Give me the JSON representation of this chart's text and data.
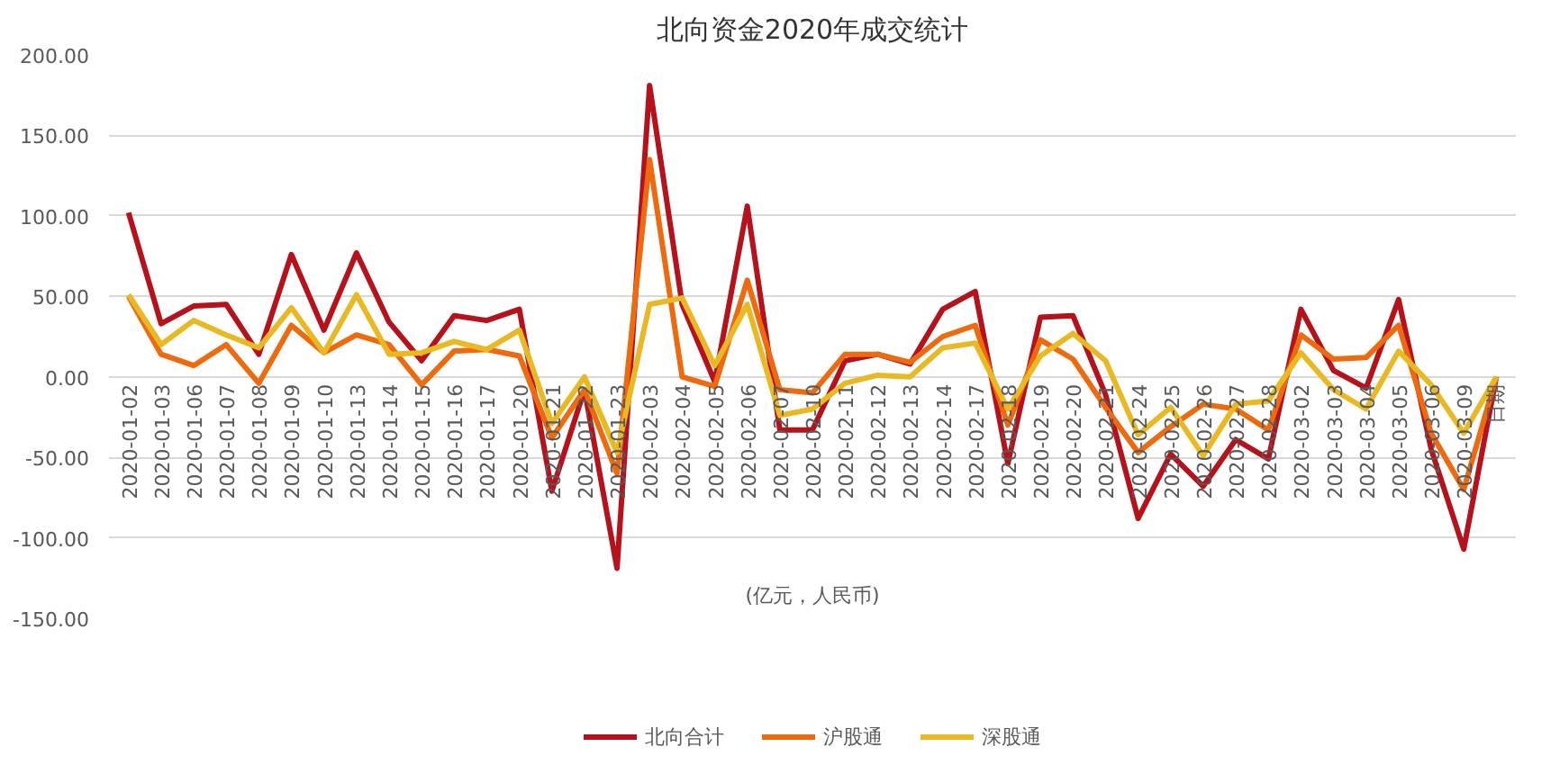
{
  "chart_data": {
    "type": "line",
    "title": "北向资金2020年成交统计",
    "categories": [
      "2020-01-02",
      "2020-01-03",
      "2020-01-06",
      "2020-01-07",
      "2020-01-08",
      "2020-01-09",
      "2020-01-10",
      "2020-01-13",
      "2020-01-14",
      "2020-01-15",
      "2020-01-16",
      "2020-01-17",
      "2020-01-20",
      "2020-01-21",
      "2020-01-22",
      "2020-01-23",
      "2020-02-03",
      "2020-02-04",
      "2020-02-05",
      "2020-02-06",
      "2020-02-07",
      "2020-02-10",
      "2020-02-11",
      "2020-02-12",
      "2020-02-13",
      "2020-02-14",
      "2020-02-17",
      "2020-02-18",
      "2020-02-19",
      "2020-02-20",
      "2020-02-21",
      "2020-02-24",
      "2020-02-25",
      "2020-02-26",
      "2020-02-27",
      "2020-02-28",
      "2020-03-02",
      "2020-03-03",
      "2020-03-04",
      "2020-03-05",
      "2020-03-06",
      "2020-03-09",
      "日期"
    ],
    "series": [
      {
        "name": "北向合计",
        "color": "#b5121b",
        "values": [
          102,
          33,
          44,
          45,
          14,
          76,
          29,
          77,
          34,
          10,
          38,
          35,
          42,
          -71,
          -8,
          -119,
          181,
          45,
          -3,
          106,
          -33,
          -33,
          10,
          14,
          8,
          42,
          53,
          -54,
          37,
          38,
          -11,
          -88,
          -48,
          -68,
          -39,
          -51,
          42,
          4,
          -7,
          48,
          -45,
          -107,
          0
        ]
      },
      {
        "name": "沪股通",
        "color": "#ed6a0f",
        "values": [
          50,
          14,
          7,
          20,
          -4,
          32,
          15,
          26,
          20,
          -5,
          16,
          17,
          13,
          -38,
          -8,
          -60,
          135,
          0,
          -6,
          60,
          -8,
          -10,
          14,
          14,
          9,
          25,
          32,
          -30,
          23,
          11,
          -19,
          -47,
          -31,
          -17,
          -20,
          -33,
          26,
          11,
          12,
          32,
          -35,
          -70,
          0
        ]
      },
      {
        "name": "深股通",
        "color": "#e8b923",
        "values": [
          51,
          20,
          35,
          26,
          18,
          43,
          15,
          51,
          14,
          15,
          22,
          17,
          29,
          -29,
          0,
          -47,
          45,
          49,
          7,
          45,
          -24,
          -20,
          -4,
          1,
          0,
          18,
          21,
          -20,
          13,
          27,
          10,
          -36,
          -19,
          -49,
          -17,
          -15,
          15,
          -8,
          -20,
          16,
          -5,
          -35,
          0
        ]
      }
    ],
    "ylim": [
      -150,
      200
    ],
    "yticks": [
      {
        "value": -150,
        "label": "-150.00"
      },
      {
        "value": -100,
        "label": "-100.00"
      },
      {
        "value": -50,
        "label": "-50.00"
      },
      {
        "value": 0,
        "label": "0.00"
      },
      {
        "value": 50,
        "label": "50.00"
      },
      {
        "value": 100,
        "label": "100.00"
      },
      {
        "value": 150,
        "label": "150.00"
      },
      {
        "value": 200,
        "label": "200.00"
      }
    ],
    "grid": "y",
    "legend": "bottom",
    "line_style": "solid",
    "annotations": [
      "(亿元，人民币)"
    ]
  }
}
